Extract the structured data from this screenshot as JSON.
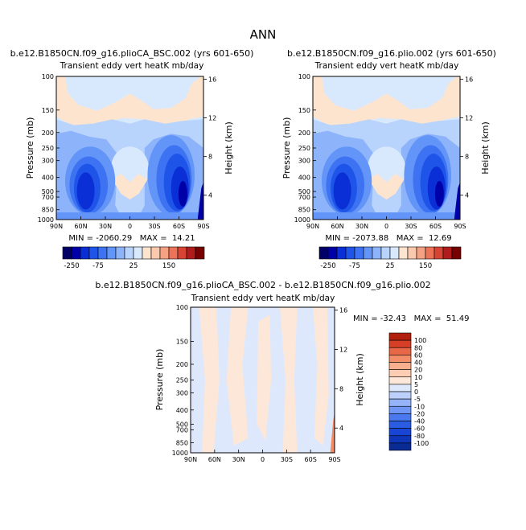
{
  "page": {
    "title": "ANN"
  },
  "palettes": {
    "main": [
      "#000066",
      "#0000a8",
      "#0b2fd6",
      "#1f54e8",
      "#3d73f2",
      "#6394f7",
      "#8db4fa",
      "#b8d3fc",
      "#d9e9fd",
      "#fde4cf",
      "#fbc9ad",
      "#f5a184",
      "#ec7358",
      "#d84434",
      "#b01c1c",
      "#770000"
    ],
    "diff": [
      "#0a2a94",
      "#0f35b8",
      "#1845d6",
      "#2b5ce4",
      "#4a78ee",
      "#6f96f4",
      "#95b3f8",
      "#bcd0fb",
      "#dde8fd",
      "#fde7d8",
      "#fccdb3",
      "#f9af8d",
      "#f28d68",
      "#e86746",
      "#d63f25",
      "#b0200c"
    ]
  },
  "chart_data": [
    {
      "type": "contour",
      "id": "panel-left",
      "case_title": "b.e12.B1850CN.f09_g16.plioCA_BSC.002 (yrs 601-650)",
      "var_title": "Transient eddy vert heatK mb/day",
      "ylabel": "Pressure (mb)",
      "y2label": "Height (km)",
      "x_ticks": [
        "90N",
        "60N",
        "30N",
        "0",
        "30S",
        "60S",
        "90S"
      ],
      "y_ticks": [
        "100",
        "150",
        "200",
        "250",
        "300",
        "400",
        "500",
        "700",
        "850",
        "1000"
      ],
      "y2_ticks": [
        "16",
        "12",
        "8",
        "4"
      ],
      "stats": "MIN = -2060.29   MAX =  14.21",
      "colorbar_labels": [
        "-250",
        "-75",
        "25",
        "150"
      ]
    },
    {
      "type": "contour",
      "id": "panel-right",
      "case_title": "b.e12.B1850CN.f09_g16.plio.002 (yrs 601-650)",
      "var_title": "Transient eddy vert heatK mb/day",
      "ylabel": "Pressure (mb)",
      "y2label": "Height (km)",
      "x_ticks": [
        "90N",
        "60N",
        "30N",
        "0",
        "30S",
        "60S",
        "90S"
      ],
      "y_ticks": [
        "100",
        "150",
        "200",
        "250",
        "300",
        "400",
        "500",
        "700",
        "850",
        "1000"
      ],
      "y2_ticks": [
        "16",
        "12",
        "8",
        "4"
      ],
      "stats": "MIN = -2073.88   MAX =  12.69",
      "colorbar_labels": [
        "-250",
        "-75",
        "25",
        "150"
      ]
    },
    {
      "type": "contour",
      "id": "panel-diff",
      "case_title": "b.e12.B1850CN.f09_g16.plioCA_BSC.002 - b.e12.B1850CN.f09_g16.plio.002",
      "var_title": "Transient eddy vert heatK mb/day",
      "ylabel": "Pressure (mb)",
      "y2label": "Height (km)",
      "x_ticks": [
        "90N",
        "60N",
        "30N",
        "0",
        "30S",
        "60S",
        "90S"
      ],
      "y_ticks": [
        "100",
        "150",
        "200",
        "250",
        "300",
        "400",
        "500",
        "700",
        "850",
        "1000"
      ],
      "y2_ticks": [
        "16",
        "12",
        "8",
        "4"
      ],
      "stats": "MIN = -32.43   MAX =  51.49",
      "colorbar_labels": [
        "100",
        "80",
        "60",
        "40",
        "20",
        "10",
        "5",
        "0",
        "-5",
        "-10",
        "-20",
        "-40",
        "-60",
        "-80",
        "-100"
      ]
    }
  ]
}
